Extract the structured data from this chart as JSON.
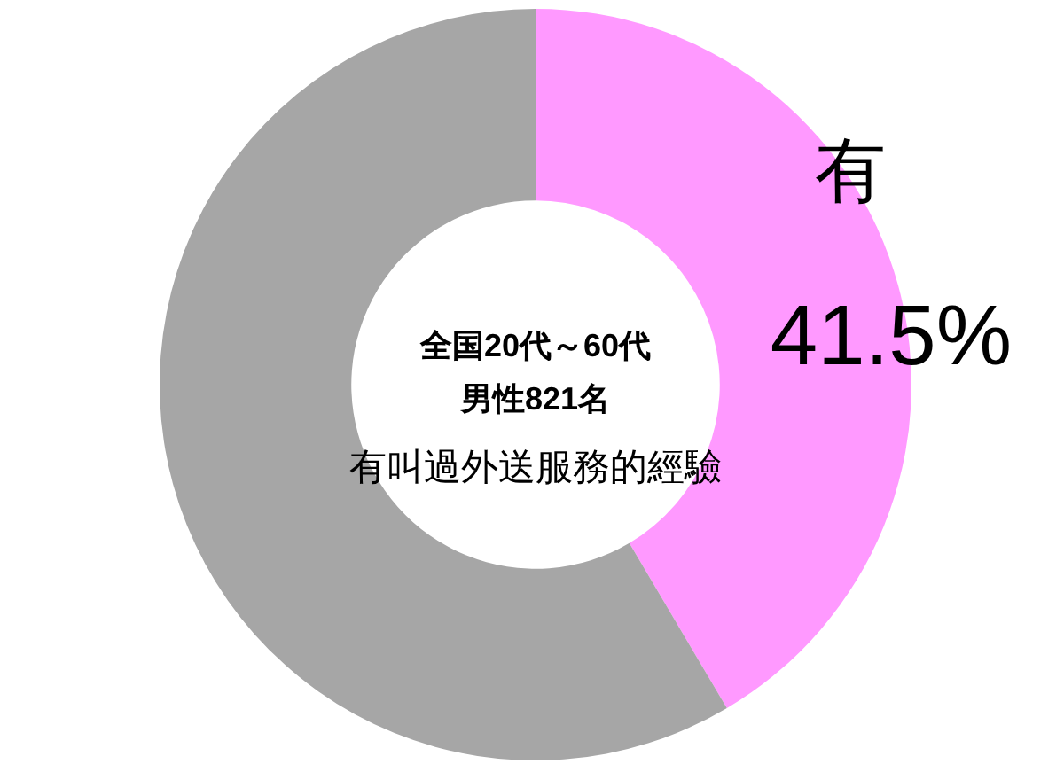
{
  "chart_data": {
    "type": "donut",
    "title": "全国20代～60代",
    "subtitle": "男性821名",
    "annotations": [
      "有叫過外送服務的經驗"
    ],
    "categories": [
      "有",
      null
    ],
    "values": [
      41.5,
      58.5
    ],
    "colors": [
      "#ff99ff",
      "#a6a6a6"
    ],
    "value_labels": [
      "41.5%",
      null
    ]
  }
}
